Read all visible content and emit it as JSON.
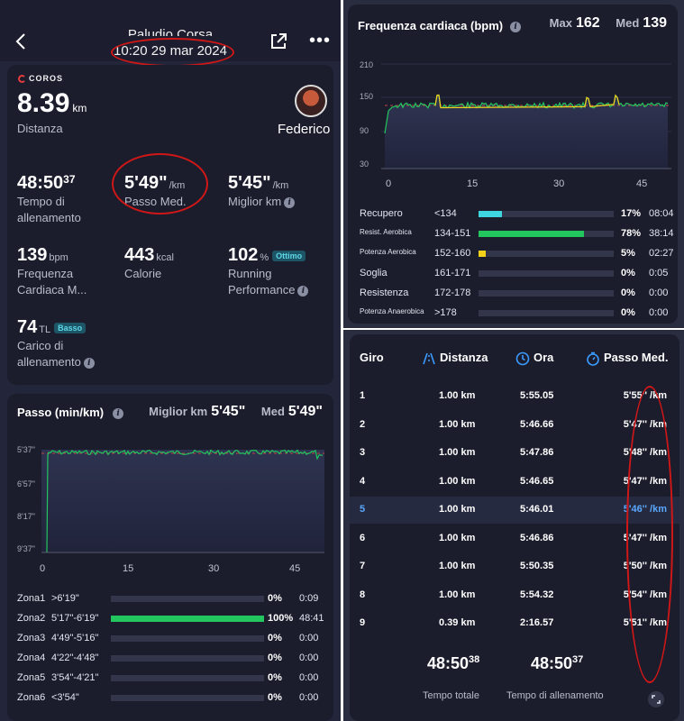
{
  "topbar": {
    "title": "Paludio Corsa",
    "date": "10:20 29 mar 2024"
  },
  "summary": {
    "brand": "COROS",
    "distance": {
      "value": "8.39",
      "unit": "km",
      "label": "Distanza"
    },
    "user": "Federico",
    "metrics": [
      {
        "main": "48:50",
        "sup": "37",
        "unit": "",
        "label": "Tempo di allenamento",
        "badge": ""
      },
      {
        "main": "5'49\"",
        "sup": "",
        "unit": "/km",
        "label": "Passo Med.",
        "badge": ""
      },
      {
        "main": "5'45\"",
        "sup": "",
        "unit": "/km",
        "label": "Miglior km",
        "badge": ""
      },
      {
        "main": "139",
        "sup": "",
        "unit": "bpm",
        "label": "Frequenza Cardiaca M...",
        "badge": ""
      },
      {
        "main": "443",
        "sup": "",
        "unit": "kcal",
        "label": "Calorie",
        "badge": ""
      },
      {
        "main": "102",
        "sup": "",
        "unit": "%",
        "label": "Running Performance",
        "badge": "Ottimo"
      },
      {
        "main": "74",
        "sup": "",
        "unit": "TL",
        "label": "Carico di allenamento",
        "badge": "Basso"
      }
    ]
  },
  "pace_card": {
    "title": "Passo (min/km)",
    "best_label": "Miglior km",
    "best_value": "5'45\"",
    "avg_label": "Med",
    "avg_value": "5'49\"",
    "y_ticks": [
      "5'37\"",
      "6'57\"",
      "8'17\"",
      "9'37\""
    ],
    "x_ticks": [
      "0",
      "15",
      "30",
      "45"
    ],
    "zones": [
      {
        "name": "Zona1",
        "range": ">6'19\"",
        "pct": "0%",
        "time": "0:09",
        "fill": 0.0
      },
      {
        "name": "Zona2",
        "range": "5'17\"-6'19\"",
        "pct": "100%",
        "time": "48:41",
        "fill": 1.0
      },
      {
        "name": "Zona3",
        "range": "4'49\"-5'16\"",
        "pct": "0%",
        "time": "0:00",
        "fill": 0.0
      },
      {
        "name": "Zona4",
        "range": "4'22\"-4'48\"",
        "pct": "0%",
        "time": "0:00",
        "fill": 0.0
      },
      {
        "name": "Zona5",
        "range": "3'54\"-4'21\"",
        "pct": "0%",
        "time": "0:00",
        "fill": 0.0
      },
      {
        "name": "Zona6",
        "range": "<3'54\"",
        "pct": "0%",
        "time": "0:00",
        "fill": 0.0
      }
    ],
    "zone_color": "#22c55e"
  },
  "hr_card": {
    "title": "Frequenza cardiaca (bpm)",
    "max_label": "Max",
    "max_value": "162",
    "avg_label": "Med",
    "avg_value": "139",
    "y_ticks": [
      "210",
      "150",
      "90",
      "30"
    ],
    "x_ticks": [
      "0",
      "15",
      "30",
      "45"
    ],
    "zones": [
      {
        "name": "Recupero",
        "range": "<134",
        "pct": "17%",
        "time": "08:04",
        "fill": 0.17,
        "color": "#3ed4e0"
      },
      {
        "name": "Resist. Aerobica",
        "range": "134-151",
        "pct": "78%",
        "time": "38:14",
        "fill": 0.78,
        "color": "#22c55e"
      },
      {
        "name": "Potenza Aerobica",
        "range": "152-160",
        "pct": "5%",
        "time": "02:27",
        "fill": 0.05,
        "color": "#f2d21b"
      },
      {
        "name": "Soglia",
        "range": "161-171",
        "pct": "0%",
        "time": "0:05",
        "fill": 0.0,
        "color": "#f59e0b"
      },
      {
        "name": "Resistenza",
        "range": "172-178",
        "pct": "0%",
        "time": "0:00",
        "fill": 0.0,
        "color": "#ef4444"
      },
      {
        "name": "Potenza Anaerobica",
        "range": ">178",
        "pct": "0%",
        "time": "0:00",
        "fill": 0.0,
        "color": "#a855f7"
      }
    ]
  },
  "laps": {
    "headers": {
      "lap": "Giro",
      "distance": "Distanza",
      "time": "Ora",
      "pace": "Passo Med."
    },
    "rows": [
      {
        "n": "1",
        "d": "1.00 km",
        "t": "5:55.05",
        "p": "5'55'' /km"
      },
      {
        "n": "2",
        "d": "1.00 km",
        "t": "5:46.66",
        "p": "5'47'' /km"
      },
      {
        "n": "3",
        "d": "1.00 km",
        "t": "5:47.86",
        "p": "5'48'' /km"
      },
      {
        "n": "4",
        "d": "1.00 km",
        "t": "5:46.65",
        "p": "5'47'' /km"
      },
      {
        "n": "5",
        "d": "1.00 km",
        "t": "5:46.01",
        "p": "5'46'' /km"
      },
      {
        "n": "6",
        "d": "1.00 km",
        "t": "5:46.86",
        "p": "5'47'' /km"
      },
      {
        "n": "7",
        "d": "1.00 km",
        "t": "5:50.35",
        "p": "5'50'' /km"
      },
      {
        "n": "8",
        "d": "1.00 km",
        "t": "5:54.32",
        "p": "5'54'' /km"
      },
      {
        "n": "9",
        "d": "0.39 km",
        "t": "2:16.57",
        "p": "5'51'' /km"
      }
    ],
    "total_time": {
      "main": "48:50",
      "sup": "38",
      "label": "Tempo totale"
    },
    "training_time": {
      "main": "48:50",
      "sup": "37",
      "label": "Tempo di allenamento"
    }
  }
}
